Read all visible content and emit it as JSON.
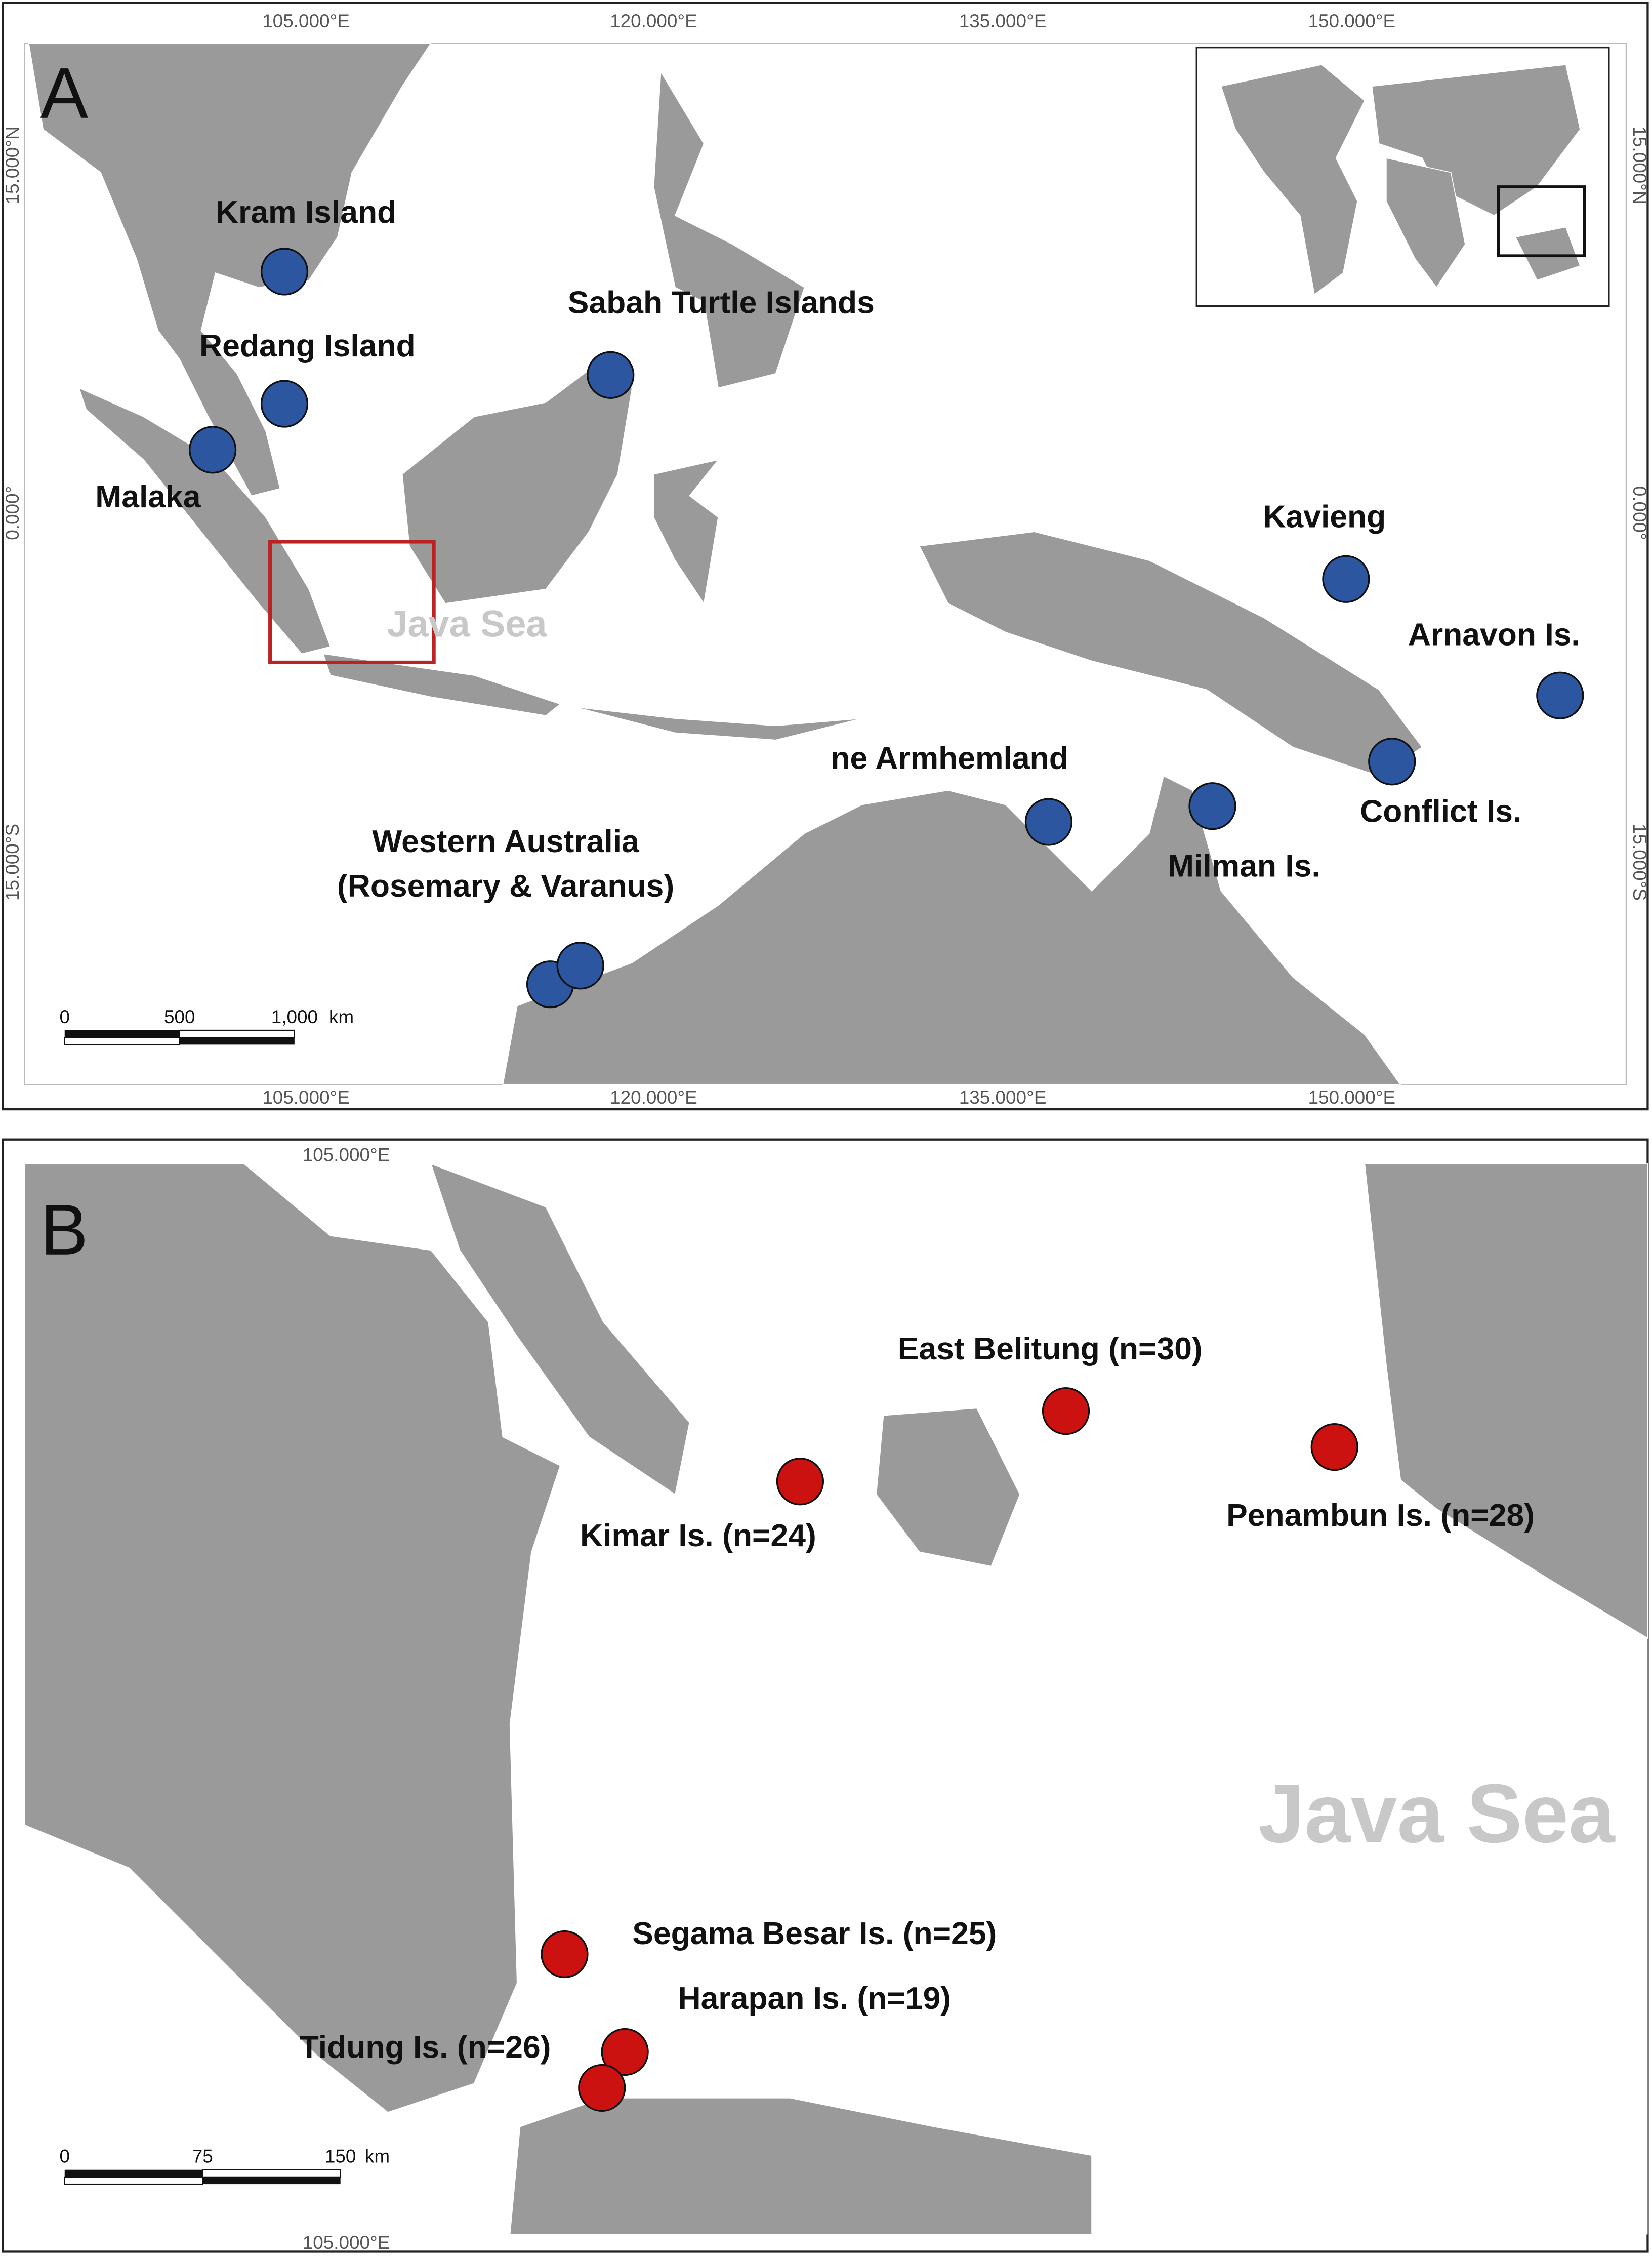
{
  "panel_a": {
    "label": "A",
    "sea_label": "Java Sea",
    "lon_labels": [
      "105.000°E",
      "120.000°E",
      "135.000°E",
      "150.000°E"
    ],
    "lat_labels": [
      "15.000°N",
      "0.000°",
      "15.000°S"
    ],
    "sites": [
      "Kram Island",
      "Redang Island",
      "Malaka",
      "Sabah Turtle Islands",
      "Kavieng",
      "Arnavon Is.",
      "Conflict Is.",
      "Milman Is.",
      "ne Armhemland",
      "Western Australia",
      "(Rosemary & Varanus)"
    ],
    "scale": [
      "0",
      "500",
      "1,000",
      "km"
    ]
  },
  "panel_b": {
    "label": "B",
    "sea_label": "Java Sea",
    "lon_label": "105.000°E",
    "sites": [
      "East Belitung (n=30)",
      "Kimar Is. (n=24)",
      "Penambun Is. (n=28)",
      "Segama Besar Is. (n=25)",
      "Harapan Is. (n=19)",
      "Tidung Is. (n=26)"
    ],
    "scale": [
      "0",
      "75",
      "150",
      "km"
    ]
  }
}
